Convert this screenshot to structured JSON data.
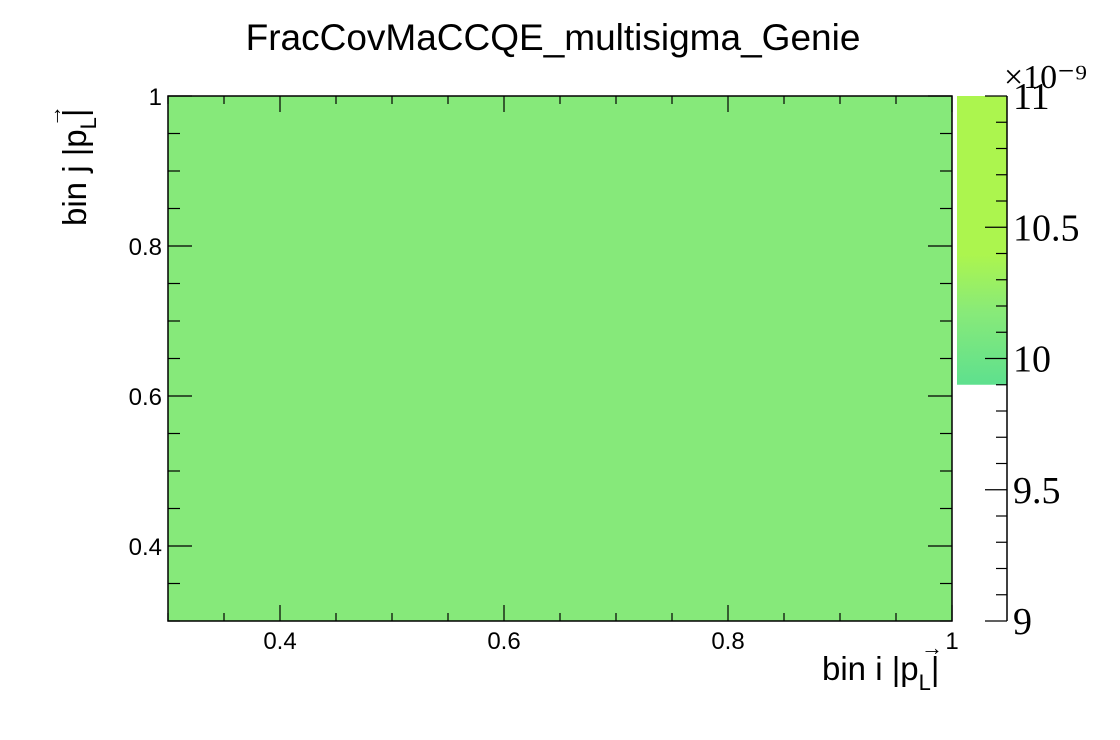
{
  "chart_data": {
    "type": "heatmap",
    "title": "FracCovMaCCQE_multisigma_Genie",
    "xlabel": "bin i |p_L|",
    "ylabel": "bin j |p_L|",
    "xlim": [
      0.3,
      1.0
    ],
    "ylim": [
      0.3,
      1.0
    ],
    "x_ticks": [
      "0.4",
      "0.6",
      "0.8",
      "1"
    ],
    "y_ticks": [
      "0.4",
      "0.6",
      "0.8",
      "1"
    ],
    "cells": [
      {
        "x0": 0.3,
        "x1": 1.0,
        "y0": 0.3,
        "y1": 1.0,
        "value": 1e-08
      }
    ],
    "colorbar": {
      "range": [
        9,
        11
      ],
      "multiplier": "×10⁻⁹",
      "ticks": [
        "9",
        "9.5",
        "10",
        "10.5",
        "11"
      ],
      "filled_from": 9.9,
      "colors": {
        "low": "#5ee08e",
        "mid": "#88ea79",
        "high": "#acf54e"
      }
    },
    "cell_color": "#86e97a",
    "grid": false,
    "legend": "none"
  }
}
